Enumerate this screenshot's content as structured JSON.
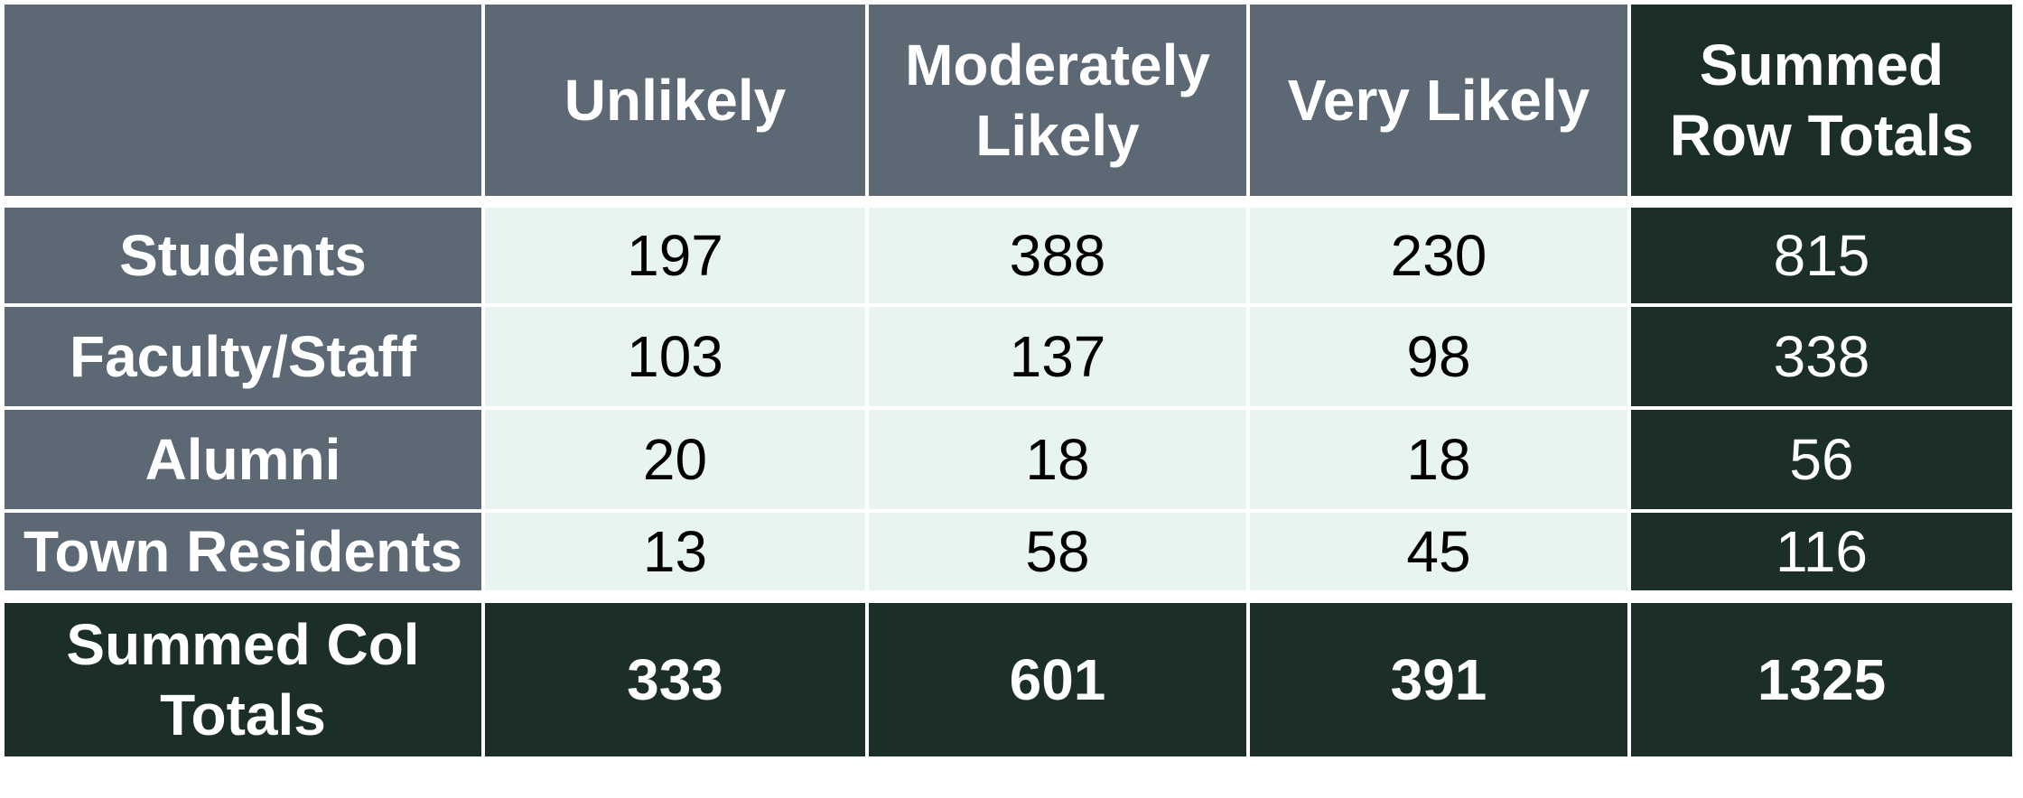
{
  "table": {
    "corner": "",
    "columns": [
      "Unlikely",
      "Moderately Likely",
      "Very Likely",
      "Summed Row Totals"
    ],
    "rows": [
      {
        "label": "Students",
        "values": [
          "197",
          "388",
          "230"
        ],
        "total": "815"
      },
      {
        "label": "Faculty/Staff",
        "values": [
          "103",
          "137",
          "98"
        ],
        "total": "338"
      },
      {
        "label": "Alumni",
        "values": [
          "20",
          "18",
          "18"
        ],
        "total": "56"
      },
      {
        "label": "Town Residents",
        "values": [
          "13",
          "58",
          "45"
        ],
        "total": "116"
      }
    ],
    "footer": {
      "label": "Summed Col Totals",
      "values": [
        "333",
        "601",
        "391"
      ],
      "total": "1325"
    }
  },
  "colors": {
    "header_bg": "#5c6873",
    "value_bg": "#e7f4ef",
    "totals_bg": "#1b2e27",
    "separator": "#ffffff"
  }
}
